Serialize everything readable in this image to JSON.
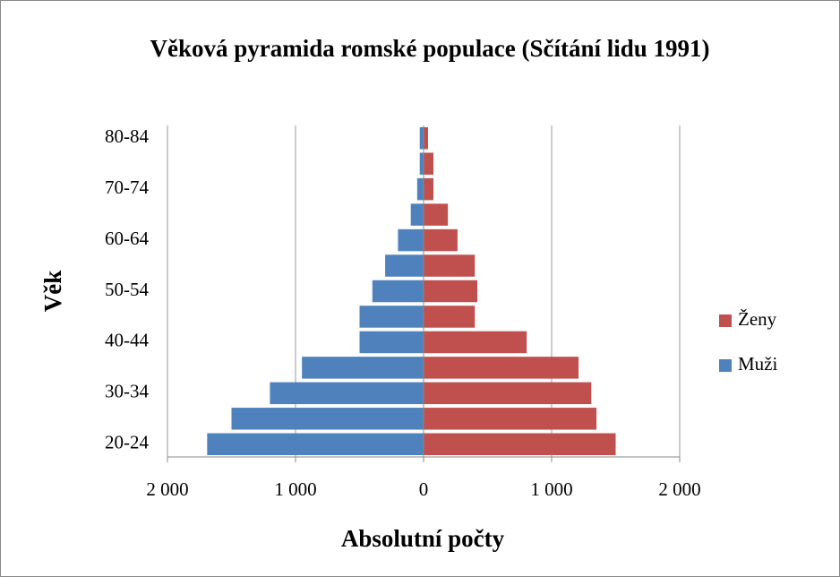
{
  "chart_data": {
    "type": "bar",
    "orientation": "horizontal",
    "stacked": true,
    "title": "Věková pyramida romské populace (Sčítání lidu 1991)",
    "xlabel": "Absolutní počty",
    "ylabel": "Věk",
    "categories": [
      "20-24",
      null,
      "30-34",
      null,
      "40-44",
      null,
      "50-54",
      null,
      "60-64",
      null,
      "70-74",
      null,
      "80-84"
    ],
    "series": [
      {
        "name": "Ženy",
        "color": "#c0504d",
        "values": [
          1500,
          1350,
          1310,
          1210,
          805,
          400,
          420,
          400,
          265,
          190,
          77,
          77,
          35
        ]
      },
      {
        "name": "Muži",
        "color": "#4f81bd",
        "values": [
          -1690,
          -1500,
          -1200,
          -950,
          -500,
          -500,
          -400,
          -300,
          -200,
          -100,
          -50,
          -30,
          -30
        ]
      }
    ],
    "xlim": [
      -2000,
      2000
    ],
    "xticks": [
      {
        "value": -2000,
        "label": "2 000"
      },
      {
        "value": -1000,
        "label": "1 000"
      },
      0,
      {
        "value": 1000,
        "label": "1 000"
      },
      {
        "value": 2000,
        "label": "2 000"
      }
    ],
    "grid": true,
    "legend": "right"
  }
}
